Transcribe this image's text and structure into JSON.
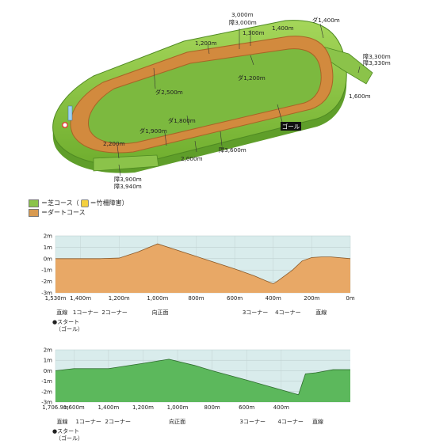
{
  "course_labels": {
    "d3000": "3,000m",
    "s3000": "障3,000m",
    "d1300": "1,300m",
    "d1400": "1,400m",
    "dirt1400": "ダ1,400m",
    "d1200": "1,200m",
    "s3300": "障3,300m",
    "s3330": "障3,330m",
    "dirt1200": "ダ1,200m",
    "d1600": "1,600m",
    "dirt2500": "ダ2,500m",
    "goal": "ゴール",
    "dirt1800": "ダ1,800m",
    "dirt1900": "ダ1,900m",
    "d2200": "2,200m",
    "d2000": "2,000m",
    "s3600": "障3,600m",
    "s3900": "障3,900m",
    "s3940": "障3,940m"
  },
  "legend": {
    "turf": "＝芝コース（",
    "hurdle": "＝竹柵障害）",
    "dirt": "＝ダートコース"
  },
  "colors": {
    "turf": "#8bc34a",
    "dirt": "#d89a50",
    "dirt_profile": "#e8a866",
    "turf_profile": "#5cb85c",
    "sky": "#d9ecec"
  },
  "chart_data": [
    {
      "type": "area",
      "name": "dirt-profile",
      "y_ticks": [
        "2m",
        "1m",
        "0m",
        "-1m",
        "-2m",
        "-3m"
      ],
      "ylim": [
        -3,
        2
      ],
      "x_range": [
        1530,
        0
      ],
      "x_tick_labels": [
        {
          "label": "1,530m",
          "x": 1530
        },
        {
          "label": "1,400m",
          "x": 1400
        },
        {
          "label": "1,200m",
          "x": 1200
        },
        {
          "label": "1,000m",
          "x": 1000
        },
        {
          "label": "800m",
          "x": 800
        },
        {
          "label": "600m",
          "x": 600
        },
        {
          "label": "400m",
          "x": 400
        },
        {
          "label": "200m",
          "x": 200
        },
        {
          "label": "0m",
          "x": 0
        }
      ],
      "x": [
        1530,
        1400,
        1300,
        1200,
        1100,
        1000,
        800,
        600,
        500,
        430,
        400,
        380,
        300,
        250,
        200,
        150,
        100,
        0
      ],
      "y": [
        0,
        0,
        0,
        0.05,
        0.6,
        1.3,
        0.2,
        -0.9,
        -1.5,
        -2,
        -2.2,
        -2,
        -1,
        -0.2,
        0.1,
        0.15,
        0.15,
        0
      ],
      "sections": [
        {
          "label": "直線",
          "x": 1525
        },
        {
          "label": "1コーナー",
          "x": 1440
        },
        {
          "label": "2コーナー",
          "x": 1290
        },
        {
          "label": "向正面",
          "x": 1030
        },
        {
          "label": "3コーナー",
          "x": 560
        },
        {
          "label": "4コーナー",
          "x": 390
        },
        {
          "label": "直線",
          "x": 180
        }
      ],
      "start_label": "●スタート",
      "goal_label": "（ゴール）"
    },
    {
      "type": "area",
      "name": "turf-profile",
      "y_ticks": [
        "2m",
        "1m",
        "0m",
        "-1m",
        "-2m",
        "-3m"
      ],
      "ylim": [
        -3,
        2
      ],
      "x_range": [
        1706.9,
        0
      ],
      "x_tick_labels": [
        {
          "label": "1,706.9m",
          "x": 1706.9
        },
        {
          "label": "1,600m",
          "x": 1600
        },
        {
          "label": "1,400m",
          "x": 1400
        },
        {
          "label": "1,200m",
          "x": 1200
        },
        {
          "label": "1,000m",
          "x": 1000
        },
        {
          "label": "800m",
          "x": 800
        },
        {
          "label": "600m",
          "x": 600
        },
        {
          "label": "400m",
          "x": 400
        }
      ],
      "x": [
        1706.9,
        1600,
        1400,
        1200,
        1050,
        900,
        800,
        600,
        450,
        300,
        260,
        200,
        100,
        0
      ],
      "y": [
        0,
        0.2,
        0.2,
        0.7,
        1.1,
        0.5,
        0,
        -0.9,
        -1.6,
        -2.3,
        -0.3,
        -0.2,
        0.1,
        0.1
      ],
      "sections": [
        {
          "label": "直線",
          "x": 1700
        },
        {
          "label": "1コーナー",
          "x": 1590
        },
        {
          "label": "2コーナー",
          "x": 1420
        },
        {
          "label": "向正面",
          "x": 1050
        },
        {
          "label": "3コーナー",
          "x": 640
        },
        {
          "label": "4コーナー",
          "x": 420
        },
        {
          "label": "直線",
          "x": 220
        }
      ],
      "start_label": "●スタート",
      "goal_label": "（ゴール）"
    }
  ]
}
